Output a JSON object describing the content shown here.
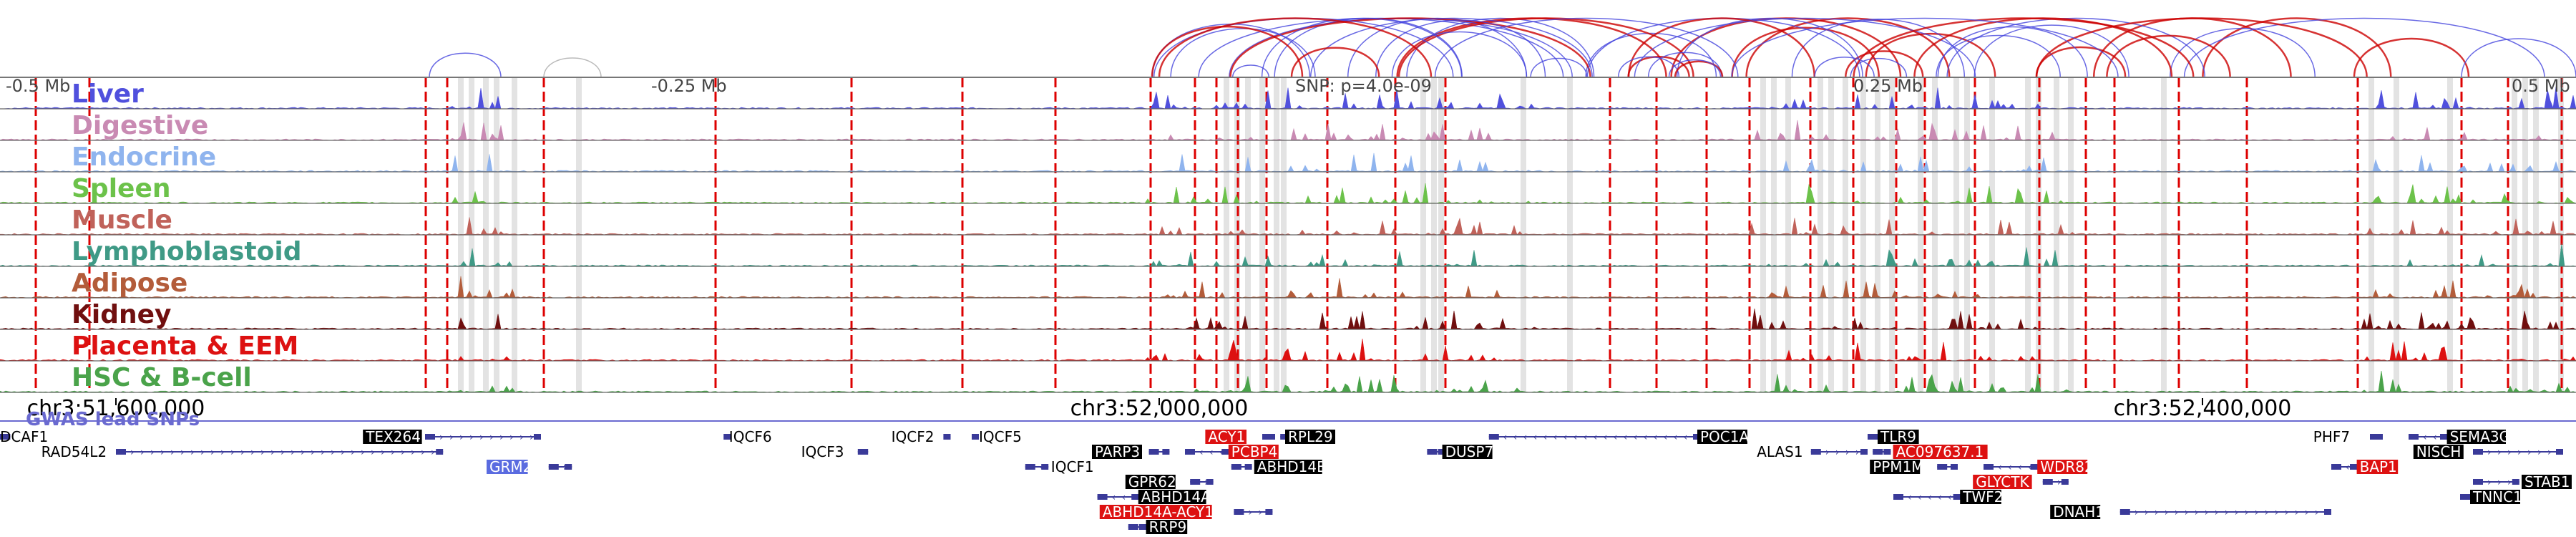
{
  "region": {
    "start_label": "-0.5 Mb",
    "mid_left_label": "-0.25 Mb",
    "snp_label": "SNP: p=4.0e-09",
    "mid_right_label": "0.25 Mb",
    "end_label": "0.5 Mb",
    "coord_ticks": [
      {
        "label": "chr3:51,600,000",
        "pos": 0.045
      },
      {
        "label": "chr3:52,000,000",
        "pos": 0.45
      },
      {
        "label": "chr3:52,400,000",
        "pos": 0.855
      }
    ]
  },
  "tracks": [
    {
      "name": "Liver",
      "color": "#5050dd"
    },
    {
      "name": "Digestive",
      "color": "#c98ab3"
    },
    {
      "name": "Endocrine",
      "color": "#8fb4ee"
    },
    {
      "name": "Spleen",
      "color": "#6cc24a"
    },
    {
      "name": "Muscle",
      "color": "#c0625a"
    },
    {
      "name": "Lymphoblastoid",
      "color": "#3f9a86"
    },
    {
      "name": "Adipose",
      "color": "#b35c3a"
    },
    {
      "name": "Kidney",
      "color": "#700f0f"
    },
    {
      "name": "Placenta & EEM",
      "color": "#dd1111"
    },
    {
      "name": "HSC & B-cell",
      "color": "#4aa34a"
    }
  ],
  "gwas_label": "GWAS lead SNPs",
  "colors": {
    "gene_strand": "#3a3a99",
    "gene_box_black": "#000000",
    "gene_box_red": "#dd1111",
    "gene_box_blue": "#5a6be0",
    "loop_red": "#cc0000",
    "loop_blue": "#4444dd",
    "vline_red": "#dd0000",
    "vline_gray": "#cccccc"
  },
  "genes": [
    {
      "name": "DCAF1",
      "row": 0,
      "label_pos": 0.0,
      "span": [
        0.0,
        0.004
      ],
      "strand": "-",
      "style": "plain"
    },
    {
      "name": "RAD54L2",
      "row": 1,
      "label_pos": 0.016,
      "span": [
        0.045,
        0.172
      ],
      "strand": "+",
      "style": "plain"
    },
    {
      "name": "TEX264",
      "row": 0,
      "label_pos": 0.142,
      "span": [
        0.165,
        0.21
      ],
      "strand": "+",
      "style": "black"
    },
    {
      "name": "GRM2",
      "row": 2,
      "label_pos": 0.19,
      "span": [
        0.213,
        0.222
      ],
      "strand": "+",
      "style": "blue"
    },
    {
      "name": "IQCF6",
      "row": 0,
      "label_pos": 0.283,
      "span": [
        0.282,
        0.283
      ],
      "strand": "-",
      "style": "plain"
    },
    {
      "name": "IQCF3",
      "row": 1,
      "label_pos": 0.311,
      "span": [
        0.333,
        0.337
      ],
      "strand": "-",
      "style": "plain"
    },
    {
      "name": "IQCF2",
      "row": 0,
      "label_pos": 0.346,
      "span": [
        0.367,
        0.369
      ],
      "strand": "-",
      "style": "plain"
    },
    {
      "name": "IQCF5",
      "row": 0,
      "label_pos": 0.38,
      "span": [
        0.378,
        0.38
      ],
      "strand": "-",
      "style": "plain"
    },
    {
      "name": "IQCF1",
      "row": 2,
      "label_pos": 0.408,
      "span": [
        0.398,
        0.407
      ],
      "strand": "-",
      "style": "plain"
    },
    {
      "name": "PARP3",
      "row": 1,
      "label_pos": 0.425,
      "span": [
        0.446,
        0.454
      ],
      "strand": "+",
      "style": "black"
    },
    {
      "name": "ACY1",
      "row": 0,
      "label_pos": 0.469,
      "span": [
        0.49,
        0.495
      ],
      "strand": "+",
      "style": "red"
    },
    {
      "name": "RPL29",
      "row": 0,
      "label_pos": 0.5,
      "span": [
        0.497,
        0.5
      ],
      "strand": "-",
      "style": "black"
    },
    {
      "name": "PCBP4",
      "row": 1,
      "label_pos": 0.478,
      "span": [
        0.46,
        0.477
      ],
      "strand": "-",
      "style": "red"
    },
    {
      "name": "ABHD14B",
      "row": 2,
      "label_pos": 0.488,
      "span": [
        0.478,
        0.486
      ],
      "strand": "-",
      "style": "black"
    },
    {
      "name": "GPR62",
      "row": 3,
      "label_pos": 0.438,
      "span": [
        0.462,
        0.471
      ],
      "strand": "+",
      "style": "black"
    },
    {
      "name": "ABHD14A",
      "row": 4,
      "label_pos": 0.443,
      "span": [
        0.426,
        0.442
      ],
      "strand": "-",
      "style": "black"
    },
    {
      "name": "ABHD14A-ACY1",
      "row": 5,
      "label_pos": 0.428,
      "span": [
        0.479,
        0.494
      ],
      "strand": "+",
      "style": "red"
    },
    {
      "name": "RRP9",
      "row": 6,
      "label_pos": 0.446,
      "span": [
        0.438,
        0.445
      ],
      "strand": "-",
      "style": "black"
    },
    {
      "name": "DUSP7",
      "row": 1,
      "label_pos": 0.561,
      "span": [
        0.554,
        0.561
      ],
      "strand": "-",
      "style": "black"
    },
    {
      "name": "POC1A",
      "row": 0,
      "label_pos": 0.66,
      "span": [
        0.578,
        0.66
      ],
      "strand": "-",
      "style": "black"
    },
    {
      "name": "ALAS1",
      "row": 1,
      "label_pos": 0.682,
      "span": [
        0.703,
        0.725
      ],
      "strand": "+",
      "style": "plain"
    },
    {
      "name": "TLR9",
      "row": 0,
      "label_pos": 0.73,
      "span": [
        0.725,
        0.729
      ],
      "strand": "-",
      "style": "black"
    },
    {
      "name": "AC097637.1",
      "row": 1,
      "label_pos": 0.736,
      "span": [
        0.727,
        0.734
      ],
      "strand": "-",
      "style": "red"
    },
    {
      "name": "PPM1M",
      "row": 2,
      "label_pos": 0.727,
      "span": [
        0.752,
        0.76
      ],
      "strand": "+",
      "style": "black"
    },
    {
      "name": "WDR82",
      "row": 2,
      "label_pos": 0.792,
      "span": [
        0.77,
        0.791
      ],
      "strand": "-",
      "style": "red"
    },
    {
      "name": "GLYCTK",
      "row": 3,
      "label_pos": 0.767,
      "span": [
        0.793,
        0.803
      ],
      "strand": "+",
      "style": "red"
    },
    {
      "name": "TWF2",
      "row": 4,
      "label_pos": 0.762,
      "span": [
        0.735,
        0.761
      ],
      "strand": "-",
      "style": "black"
    },
    {
      "name": "DNAH1",
      "row": 5,
      "label_pos": 0.797,
      "span": [
        0.823,
        0.905
      ],
      "strand": "+",
      "style": "black"
    },
    {
      "name": "PHF7",
      "row": 0,
      "label_pos": 0.898,
      "span": [
        0.92,
        0.925
      ],
      "strand": "+",
      "style": "plain"
    },
    {
      "name": "SEMA3G",
      "row": 0,
      "label_pos": 0.951,
      "span": [
        0.935,
        0.95
      ],
      "strand": "-",
      "style": "black"
    },
    {
      "name": "NISCH",
      "row": 1,
      "label_pos": 0.938,
      "span": [
        0.96,
        0.995
      ],
      "strand": "+",
      "style": "black"
    },
    {
      "name": "BAP1",
      "row": 2,
      "label_pos": 0.916,
      "span": [
        0.905,
        0.915
      ],
      "strand": "-",
      "style": "red"
    },
    {
      "name": "STAB1",
      "row": 3,
      "label_pos": 0.98,
      "span": [
        0.96,
        0.978
      ],
      "strand": "+",
      "style": "black"
    },
    {
      "name": "TNNC1",
      "row": 4,
      "label_pos": 0.96,
      "span": [
        0.955,
        0.959
      ],
      "strand": "-",
      "style": "black"
    }
  ]
}
